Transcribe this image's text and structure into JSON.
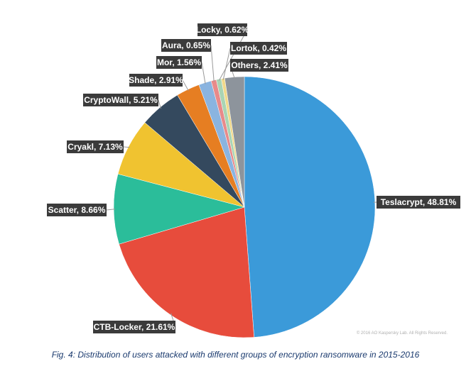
{
  "chart_data": {
    "type": "pie",
    "start_angle_deg": 0,
    "direction": "clockwise",
    "slices": [
      {
        "label": "Teslacrypt, 48.81%",
        "value": 48.81,
        "color": "#3b9ad9"
      },
      {
        "label": "CTB-Locker, 21.61%",
        "value": 21.61,
        "color": "#e74c3c"
      },
      {
        "label": "Scatter, 8.66%",
        "value": 8.66,
        "color": "#2bbd9a"
      },
      {
        "label": "Cryakl, 7.13%",
        "value": 7.13,
        "color": "#f0c330"
      },
      {
        "label": "CryptoWall, 5.21%",
        "value": 5.21,
        "color": "#34495e"
      },
      {
        "label": "Shade, 2.91%",
        "value": 2.91,
        "color": "#e67e22"
      },
      {
        "label": "Mor, 1.56%",
        "value": 1.56,
        "color": "#8ab4e0"
      },
      {
        "label": "Aura, 0.65%",
        "value": 0.65,
        "color": "#e88a8a"
      },
      {
        "label": "Locky, 0.62%",
        "value": 0.62,
        "color": "#a9d4b4"
      },
      {
        "label": "Lortok, 0.42%",
        "value": 0.42,
        "color": "#f1d98a"
      },
      {
        "label": "Others, 2.41%",
        "value": 2.41,
        "color": "#8d949c"
      }
    ]
  },
  "label_box_color": "#3b3b3b",
  "copyright": "© 2016 AO Kaspersky Lab. All Rights Reserved.",
  "caption": "Fig. 4: Distribution of users attacked with different groups of encryption ransomware in 2015-2016"
}
